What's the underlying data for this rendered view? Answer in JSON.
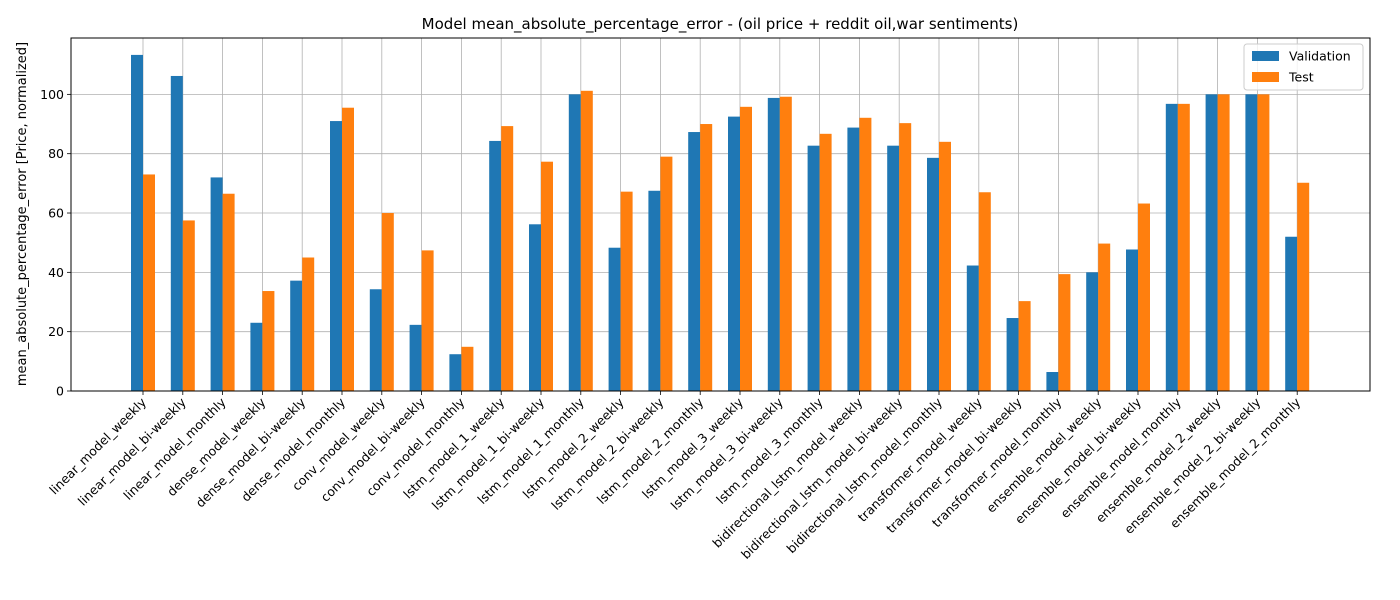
{
  "chart_data": {
    "type": "bar",
    "title": "Model mean_absolute_percentage_error - (oil price + reddit oil,war sentiments)",
    "xlabel": "",
    "ylabel": "mean_absolute_percentage_error [Price, normalized]",
    "ylim": [
      0,
      119
    ],
    "yticks": [
      0,
      20,
      40,
      60,
      80,
      100
    ],
    "grid": true,
    "legend_position": "top-right",
    "categories": [
      "linear_model_weekly",
      "linear_model_bi-weekly",
      "linear_model_monthly",
      "dense_model_weekly",
      "dense_model_bi-weekly",
      "dense_model_monthly",
      "conv_model_weekly",
      "conv_model_bi-weekly",
      "conv_model_monthly",
      "lstm_model_1_weekly",
      "lstm_model_1_bi-weekly",
      "lstm_model_1_monthly",
      "lstm_model_2_weekly",
      "lstm_model_2_bi-weekly",
      "lstm_model_2_monthly",
      "lstm_model_3_weekly",
      "lstm_model_3_bi-weekly",
      "lstm_model_3_monthly",
      "bidirectional_lstm_model_weekly",
      "bidirectional_lstm_model_bi-weekly",
      "bidirectional_lstm_model_monthly",
      "transformer_model_weekly",
      "transformer_model_bi-weekly",
      "transformer_model_monthly",
      "ensemble_model_weekly",
      "ensemble_model_bi-weekly",
      "ensemble_model_monthly",
      "ensemble_model_2_weekly",
      "ensemble_model_2_bi-weekly",
      "ensemble_model_2_monthly"
    ],
    "series": [
      {
        "name": "Validation",
        "color": "#1f77b4",
        "values": [
          113.3,
          106.2,
          72.0,
          23.0,
          37.2,
          91.0,
          34.3,
          22.3,
          12.4,
          84.3,
          56.2,
          100.0,
          48.3,
          67.5,
          87.3,
          92.5,
          98.8,
          82.7,
          88.8,
          82.7,
          78.6,
          42.3,
          24.6,
          6.4,
          40.0,
          47.7,
          96.8,
          100.0,
          100.0,
          52.0
        ]
      },
      {
        "name": "Test",
        "color": "#ff7f0e",
        "values": [
          73.0,
          57.5,
          66.5,
          33.7,
          45.0,
          95.5,
          60.0,
          47.4,
          14.9,
          89.3,
          77.3,
          101.2,
          67.2,
          79.0,
          90.0,
          95.8,
          99.2,
          86.7,
          92.1,
          90.3,
          84.0,
          67.0,
          30.3,
          39.4,
          49.7,
          63.2,
          96.8,
          100.0,
          100.0,
          70.2
        ]
      }
    ]
  }
}
